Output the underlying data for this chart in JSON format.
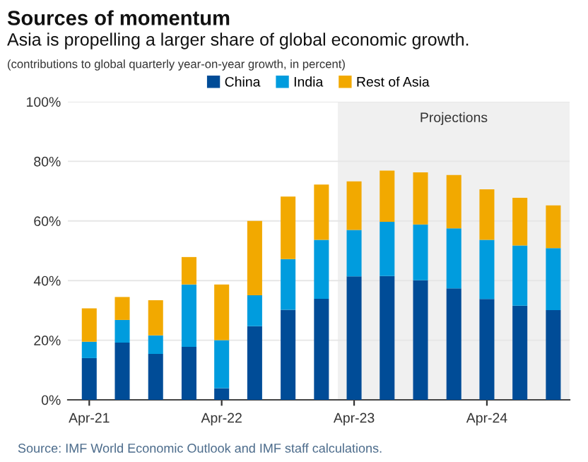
{
  "chart_data": {
    "type": "bar",
    "stacked": true,
    "title": "Sources of momentum",
    "subtitle": "Asia is propelling a larger share of global economic growth.",
    "annotations": [
      "(contributions to global quarterly year-on-year growth, in percent)",
      "Source: IMF World Economic Outlook and IMF staff calculations."
    ],
    "x": [
      "2021-04",
      "2021-07",
      "2021-10",
      "2022-01",
      "2022-04",
      "2022-07",
      "2022-10",
      "2023-01",
      "2023-04",
      "2023-07",
      "2023-10",
      "2024-01",
      "2024-04",
      "2024-07",
      "2024-10"
    ],
    "series": [
      {
        "name": "China",
        "color": "#004c97",
        "values": [
          14.0,
          19.2,
          15.4,
          17.8,
          3.9,
          24.7,
          30.2,
          33.9,
          41.4,
          41.5,
          40.1,
          37.4,
          33.8,
          31.6,
          30.1
        ]
      },
      {
        "name": "India",
        "color": "#009cde",
        "values": [
          5.5,
          7.6,
          6.2,
          20.9,
          16.1,
          10.4,
          17.0,
          19.8,
          15.6,
          18.2,
          18.7,
          20.1,
          19.9,
          20.2,
          20.8
        ]
      },
      {
        "name": "Rest of Asia",
        "color": "#f2a900",
        "values": [
          11.2,
          7.7,
          11.8,
          9.2,
          18.7,
          24.9,
          21.0,
          18.5,
          16.3,
          17.2,
          17.5,
          17.9,
          16.9,
          16.0,
          14.3
        ]
      }
    ],
    "xlim": [
      "2021-02-01",
      "2024-11-15"
    ],
    "xticks": [
      {
        "value": "2021-04",
        "label": "Apr-21"
      },
      {
        "value": "2022-04",
        "label": "Apr-22"
      },
      {
        "value": "2023-04",
        "label": "Apr-23"
      },
      {
        "value": "2024-04",
        "label": "Apr-24"
      }
    ],
    "ylim": [
      0,
      100
    ],
    "yticks": [
      {
        "value": 0,
        "label": "0%"
      },
      {
        "value": 20,
        "label": "20%"
      },
      {
        "value": 40,
        "label": "40%"
      },
      {
        "value": 60,
        "label": "60%"
      },
      {
        "value": 80,
        "label": "80%"
      },
      {
        "value": 100,
        "label": "100%"
      }
    ],
    "bands": [
      {
        "axis": "x",
        "from": "2023-02-15",
        "to": "2024-11-15",
        "label": "Projections",
        "color": "#f0f0f0"
      }
    ],
    "grid": "y",
    "legend": "top"
  }
}
